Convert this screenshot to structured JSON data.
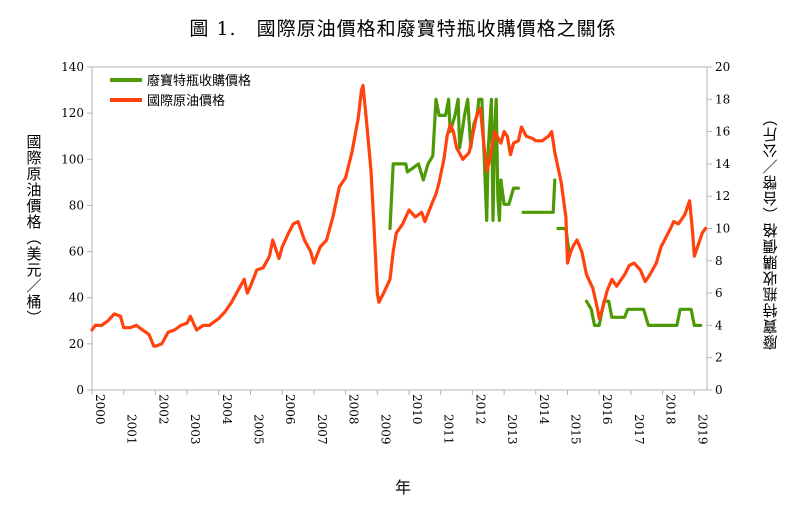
{
  "chart_data": {
    "type": "line",
    "title": "圖 1.　國際原油價格和廢寶特瓶收購價格之關係",
    "xlabel": "年",
    "ylabel_left": "國際原油價格（美元／桶）",
    "ylabel_right": "廢寶特瓶收購價格（台幣／公斤）",
    "xlim": [
      2000,
      2019.4
    ],
    "ylim_left": [
      0,
      140
    ],
    "ylim_right": [
      0,
      20
    ],
    "x_ticks": [
      "2000",
      "2001",
      "2002",
      "2003",
      "2004",
      "2005",
      "2006",
      "2007",
      "2008",
      "2009",
      "2010",
      "2011",
      "2012",
      "2013",
      "2014",
      "2015",
      "2016",
      "2017",
      "2018",
      "2019"
    ],
    "y_left_ticks": [
      "0",
      "20",
      "40",
      "60",
      "80",
      "100",
      "120",
      "140"
    ],
    "y_right_ticks": [
      "0",
      "2",
      "4",
      "6",
      "8",
      "10",
      "12",
      "14",
      "16",
      "18",
      "20"
    ],
    "legend_position": "top-left",
    "grid": false,
    "series": [
      {
        "name": "廢寶特瓶收購價格",
        "axis": "right",
        "color": "#4e9a06",
        "segments": [
          [
            [
              2009.4,
              10
            ],
            [
              2009.5,
              14
            ],
            [
              2009.9,
              14
            ],
            [
              2009.95,
              13.5
            ],
            [
              2010.3,
              14
            ],
            [
              2010.45,
              13
            ],
            [
              2010.6,
              14
            ],
            [
              2010.75,
              14.5
            ],
            [
              2010.85,
              18
            ],
            [
              2010.95,
              17
            ],
            [
              2011.15,
              17
            ],
            [
              2011.25,
              18
            ],
            [
              2011.3,
              16
            ],
            [
              2011.45,
              17
            ],
            [
              2011.55,
              18
            ],
            [
              2011.6,
              15
            ],
            [
              2011.75,
              17
            ],
            [
              2011.85,
              18
            ],
            [
              2011.95,
              15
            ],
            [
              2012.05,
              16.5
            ],
            [
              2012.15,
              17
            ],
            [
              2012.2,
              18
            ],
            [
              2012.3,
              18
            ],
            [
              2012.4,
              13
            ],
            [
              2012.45,
              10.5
            ],
            [
              2012.5,
              15
            ],
            [
              2012.6,
              18
            ],
            [
              2012.65,
              10.5
            ],
            [
              2012.7,
              16
            ],
            [
              2012.75,
              18
            ],
            [
              2012.8,
              12
            ],
            [
              2012.85,
              10.5
            ],
            [
              2012.9,
              13
            ],
            [
              2013.0,
              11.5
            ],
            [
              2013.15,
              11.5
            ],
            [
              2013.3,
              12.5
            ],
            [
              2013.45,
              12.5
            ]
          ],
          [
            [
              2013.6,
              11
            ],
            [
              2013.7,
              11
            ],
            [
              2013.9,
              11
            ],
            [
              2014.2,
              11
            ],
            [
              2014.4,
              11
            ],
            [
              2014.55,
              11
            ],
            [
              2014.6,
              13
            ]
          ],
          [
            [
              2014.7,
              10
            ],
            [
              2014.95,
              10
            ],
            [
              2015.05,
              8.5
            ]
          ],
          [
            [
              2015.6,
              5.5
            ],
            [
              2015.75,
              5
            ],
            [
              2015.85,
              4
            ],
            [
              2016.0,
              4
            ],
            [
              2016.05,
              4.5
            ],
            [
              2016.15,
              5.5
            ],
            [
              2016.3,
              5.5
            ],
            [
              2016.4,
              4.5
            ],
            [
              2016.6,
              4.5
            ],
            [
              2016.8,
              4.5
            ],
            [
              2016.9,
              5
            ],
            [
              2017.2,
              5
            ],
            [
              2017.4,
              5
            ],
            [
              2017.55,
              4
            ],
            [
              2017.8,
              4
            ],
            [
              2018.0,
              4
            ],
            [
              2018.3,
              4
            ],
            [
              2018.45,
              4
            ],
            [
              2018.55,
              5
            ],
            [
              2018.9,
              5
            ],
            [
              2019.0,
              4
            ],
            [
              2019.2,
              4
            ]
          ]
        ]
      },
      {
        "name": "國際原油價格",
        "axis": "left",
        "color": "#ff420e",
        "points": [
          [
            2000.0,
            26
          ],
          [
            2000.1,
            28
          ],
          [
            2000.3,
            28
          ],
          [
            2000.5,
            30
          ],
          [
            2000.7,
            33
          ],
          [
            2000.9,
            32
          ],
          [
            2001.0,
            27
          ],
          [
            2001.2,
            27
          ],
          [
            2001.4,
            28
          ],
          [
            2001.6,
            26
          ],
          [
            2001.8,
            24
          ],
          [
            2001.95,
            19
          ],
          [
            2002.0,
            19
          ],
          [
            2002.2,
            20
          ],
          [
            2002.4,
            25
          ],
          [
            2002.6,
            26
          ],
          [
            2002.8,
            28
          ],
          [
            2003.0,
            29
          ],
          [
            2003.1,
            32
          ],
          [
            2003.3,
            26
          ],
          [
            2003.5,
            28
          ],
          [
            2003.7,
            28
          ],
          [
            2003.9,
            30
          ],
          [
            2004.0,
            31
          ],
          [
            2004.2,
            34
          ],
          [
            2004.4,
            38
          ],
          [
            2004.6,
            43
          ],
          [
            2004.8,
            48
          ],
          [
            2004.9,
            42
          ],
          [
            2005.0,
            45
          ],
          [
            2005.2,
            52
          ],
          [
            2005.4,
            53
          ],
          [
            2005.6,
            58
          ],
          [
            2005.7,
            65
          ],
          [
            2005.9,
            57
          ],
          [
            2006.0,
            62
          ],
          [
            2006.2,
            68
          ],
          [
            2006.35,
            72
          ],
          [
            2006.5,
            73
          ],
          [
            2006.7,
            65
          ],
          [
            2006.9,
            60
          ],
          [
            2007.0,
            55
          ],
          [
            2007.2,
            62
          ],
          [
            2007.4,
            65
          ],
          [
            2007.6,
            75
          ],
          [
            2007.8,
            88
          ],
          [
            2008.0,
            92
          ],
          [
            2008.2,
            103
          ],
          [
            2008.4,
            118
          ],
          [
            2008.5,
            130
          ],
          [
            2008.55,
            132
          ],
          [
            2008.65,
            118
          ],
          [
            2008.8,
            95
          ],
          [
            2008.9,
            70
          ],
          [
            2009.0,
            42
          ],
          [
            2009.05,
            38
          ],
          [
            2009.2,
            42
          ],
          [
            2009.4,
            48
          ],
          [
            2009.5,
            60
          ],
          [
            2009.6,
            68
          ],
          [
            2009.8,
            72
          ],
          [
            2010.0,
            78
          ],
          [
            2010.2,
            75
          ],
          [
            2010.4,
            77
          ],
          [
            2010.5,
            73
          ],
          [
            2010.7,
            80
          ],
          [
            2010.85,
            85
          ],
          [
            2010.95,
            90
          ],
          [
            2011.1,
            100
          ],
          [
            2011.2,
            110
          ],
          [
            2011.3,
            115
          ],
          [
            2011.4,
            112
          ],
          [
            2011.5,
            105
          ],
          [
            2011.7,
            100
          ],
          [
            2011.9,
            103
          ],
          [
            2012.0,
            110
          ],
          [
            2012.15,
            120
          ],
          [
            2012.25,
            122
          ],
          [
            2012.35,
            108
          ],
          [
            2012.45,
            95
          ],
          [
            2012.55,
            100
          ],
          [
            2012.7,
            112
          ],
          [
            2012.9,
            107
          ],
          [
            2013.0,
            112
          ],
          [
            2013.1,
            110
          ],
          [
            2013.2,
            102
          ],
          [
            2013.3,
            107
          ],
          [
            2013.45,
            108
          ],
          [
            2013.55,
            114
          ],
          [
            2013.7,
            110
          ],
          [
            2013.9,
            109
          ],
          [
            2014.0,
            108
          ],
          [
            2014.2,
            108
          ],
          [
            2014.4,
            110
          ],
          [
            2014.5,
            112
          ],
          [
            2014.6,
            103
          ],
          [
            2014.8,
            90
          ],
          [
            2014.95,
            75
          ],
          [
            2015.0,
            55
          ],
          [
            2015.1,
            60
          ],
          [
            2015.2,
            63
          ],
          [
            2015.3,
            65
          ],
          [
            2015.45,
            60
          ],
          [
            2015.6,
            50
          ],
          [
            2015.8,
            44
          ],
          [
            2015.95,
            35
          ],
          [
            2016.0,
            31
          ],
          [
            2016.1,
            35
          ],
          [
            2016.25,
            43
          ],
          [
            2016.4,
            48
          ],
          [
            2016.55,
            45
          ],
          [
            2016.8,
            50
          ],
          [
            2016.95,
            54
          ],
          [
            2017.1,
            55
          ],
          [
            2017.3,
            52
          ],
          [
            2017.45,
            47
          ],
          [
            2017.6,
            50
          ],
          [
            2017.8,
            55
          ],
          [
            2017.95,
            62
          ],
          [
            2018.1,
            66
          ],
          [
            2018.25,
            70
          ],
          [
            2018.35,
            73
          ],
          [
            2018.5,
            72
          ],
          [
            2018.7,
            76
          ],
          [
            2018.85,
            82
          ],
          [
            2018.95,
            68
          ],
          [
            2019.0,
            58
          ],
          [
            2019.1,
            62
          ],
          [
            2019.25,
            68
          ],
          [
            2019.35,
            70
          ]
        ]
      }
    ]
  }
}
